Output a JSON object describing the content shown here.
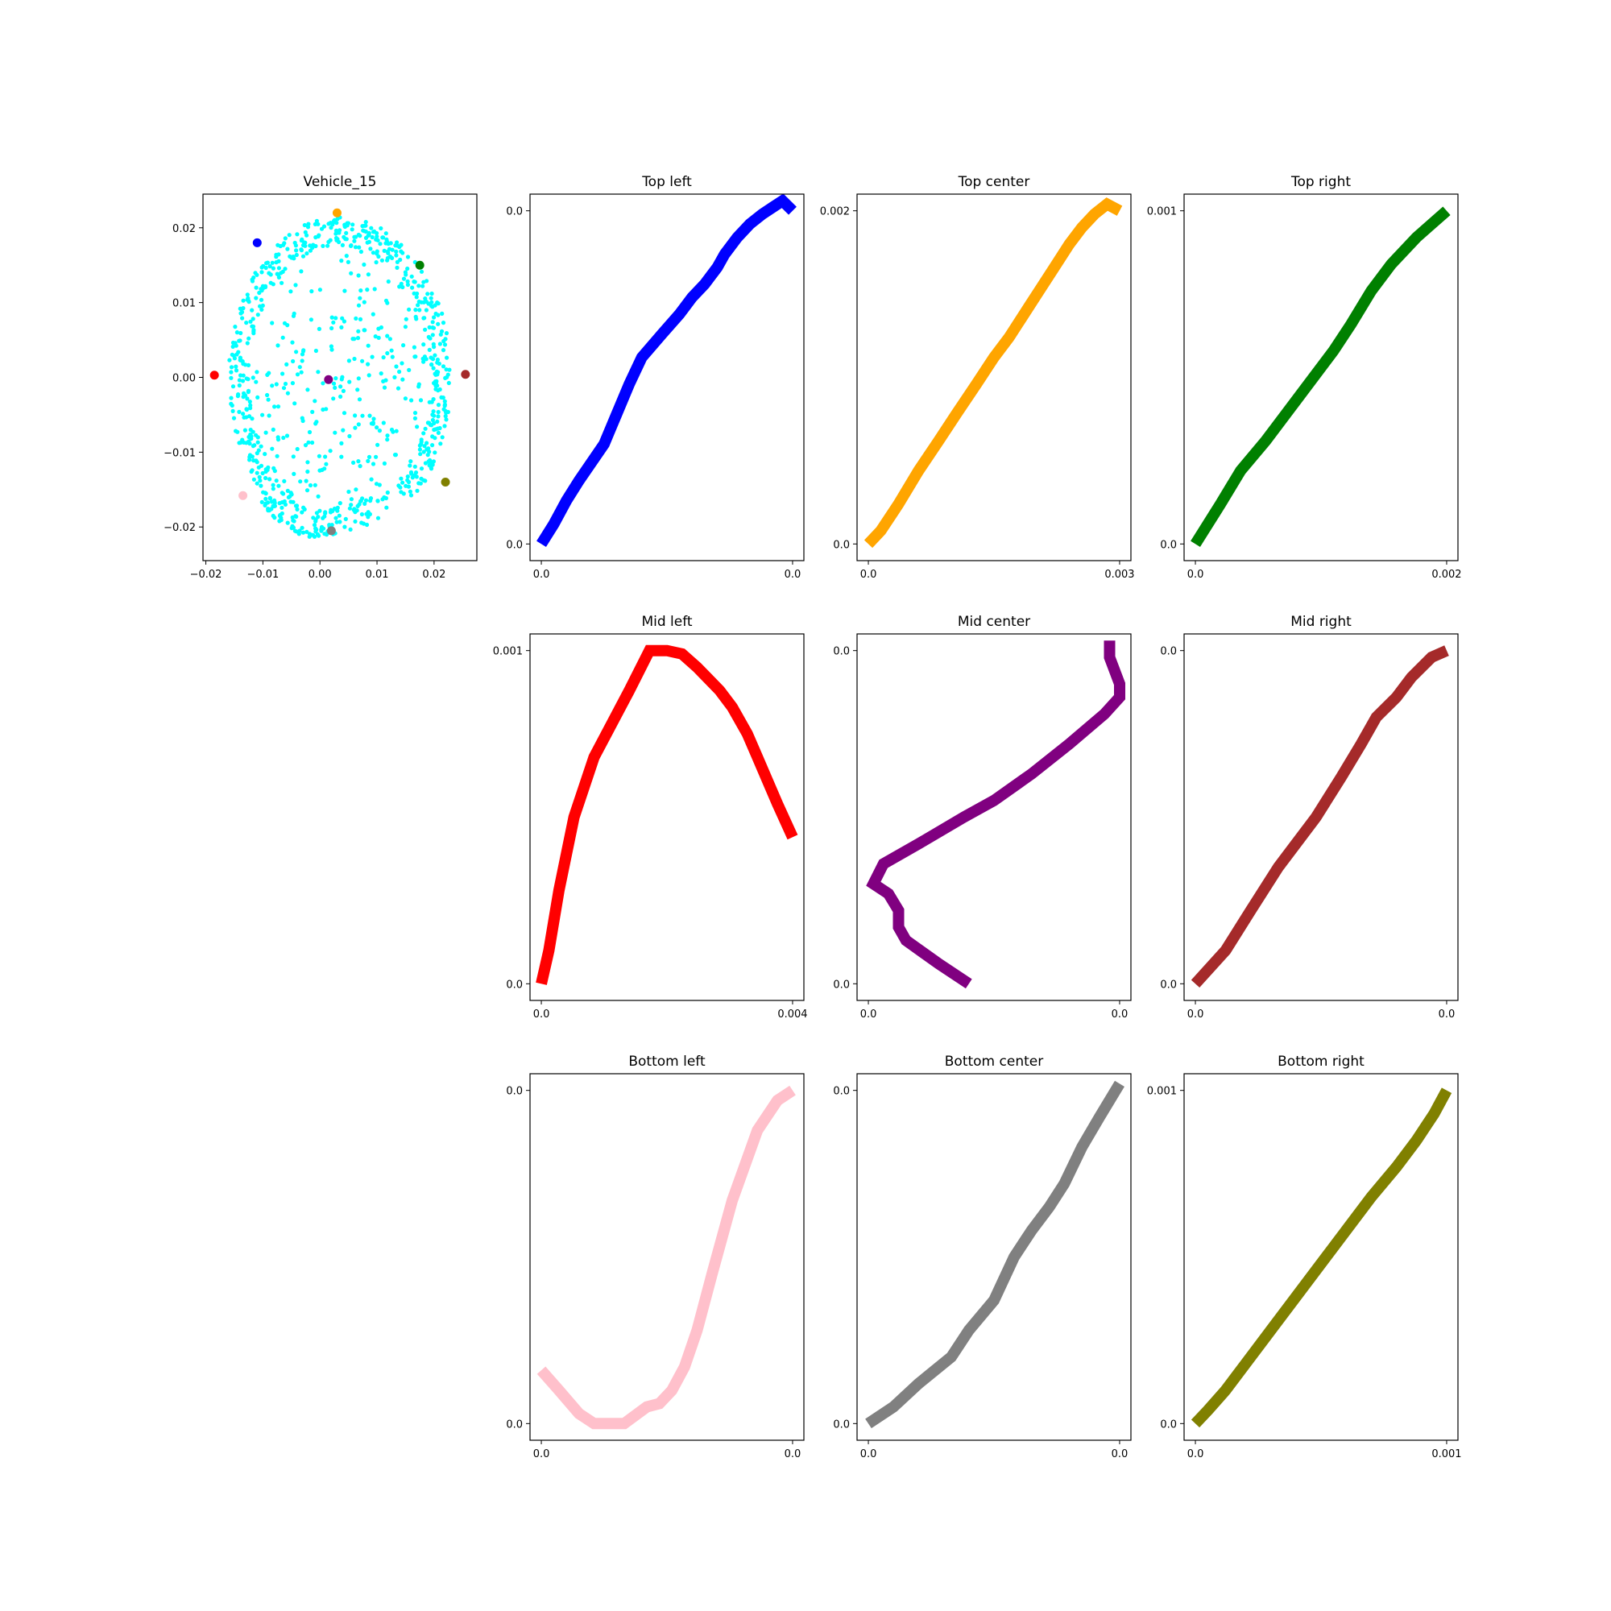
{
  "chart_data": [
    {
      "type": "scatter",
      "title": "Vehicle_15",
      "xlabel": "",
      "ylabel": "",
      "xlim": [
        -0.0205,
        0.0275
      ],
      "ylim": [
        -0.0245,
        0.0245
      ],
      "xticks": [
        -0.02,
        -0.01,
        0.0,
        0.01,
        0.02
      ],
      "xtick_labels": [
        "−0.02",
        "−0.01",
        "0.00",
        "0.01",
        "0.02"
      ],
      "yticks": [
        -0.02,
        -0.01,
        0.0,
        0.01,
        0.02
      ],
      "ytick_labels": [
        "−0.02",
        "−0.01",
        "0.00",
        "0.01",
        "0.02"
      ],
      "point_color": "#00ffff",
      "point_cloud": {
        "description_shape": "elliptical ring of points with interior scatter",
        "center": [
          0.0035,
          0.0
        ],
        "radius_x": 0.0195,
        "radius_y": 0.0215,
        "count": 900
      },
      "highlights": [
        {
          "name": "blue",
          "x": -0.011,
          "y": 0.018,
          "color": "#0000ff"
        },
        {
          "name": "orange",
          "x": 0.003,
          "y": 0.022,
          "color": "#ffa500"
        },
        {
          "name": "green",
          "x": 0.0175,
          "y": 0.015,
          "color": "#008000"
        },
        {
          "name": "red",
          "x": -0.0185,
          "y": 0.0003,
          "color": "#ff0000"
        },
        {
          "name": "purple",
          "x": 0.0015,
          "y": -0.0003,
          "color": "#800080"
        },
        {
          "name": "brown",
          "x": 0.0255,
          "y": 0.0004,
          "color": "#a52a2a"
        },
        {
          "name": "pink",
          "x": -0.0135,
          "y": -0.0158,
          "color": "#ffc0cb"
        },
        {
          "name": "gray",
          "x": 0.002,
          "y": -0.0205,
          "color": "#808080"
        },
        {
          "name": "olive",
          "x": 0.022,
          "y": -0.014,
          "color": "#808000"
        }
      ]
    },
    {
      "type": "line",
      "title": "Top left",
      "color": "#0000ff",
      "xtick_labels": [
        "0.0",
        "0.0"
      ],
      "ytick_labels": [
        "0.0",
        "0.0"
      ],
      "x": [
        0,
        0.05,
        0.1,
        0.15,
        0.25,
        0.3,
        0.35,
        0.4,
        0.48,
        0.55,
        0.6,
        0.65,
        0.7,
        0.73,
        0.78,
        0.83,
        0.88,
        0.92,
        0.96,
        1.0
      ],
      "y": [
        0,
        0.06,
        0.13,
        0.19,
        0.3,
        0.39,
        0.48,
        0.56,
        0.63,
        0.69,
        0.74,
        0.78,
        0.83,
        0.87,
        0.92,
        0.96,
        0.99,
        1.01,
        1.03,
        1.0
      ]
    },
    {
      "type": "line",
      "title": "Top center",
      "color": "#ffa500",
      "xtick_labels": [
        "0.0",
        "0.003"
      ],
      "ytick_labels": [
        "0.0",
        "0.002"
      ],
      "x": [
        0,
        0.05,
        0.12,
        0.2,
        0.28,
        0.35,
        0.43,
        0.5,
        0.56,
        0.62,
        0.68,
        0.74,
        0.8,
        0.85,
        0.9,
        0.95,
        1.0
      ],
      "y": [
        0,
        0.04,
        0.12,
        0.22,
        0.31,
        0.39,
        0.48,
        0.56,
        0.62,
        0.69,
        0.76,
        0.83,
        0.9,
        0.95,
        0.99,
        1.02,
        1.0
      ]
    },
    {
      "type": "line",
      "title": "Top right",
      "color": "#008000",
      "xtick_labels": [
        "0.0",
        "0.002"
      ],
      "ytick_labels": [
        "0.0",
        "0.001"
      ],
      "x": [
        0,
        0.1,
        0.18,
        0.28,
        0.4,
        0.55,
        0.62,
        0.7,
        0.78,
        0.88,
        1.0
      ],
      "y": [
        0,
        0.12,
        0.22,
        0.31,
        0.43,
        0.58,
        0.66,
        0.76,
        0.84,
        0.92,
        1.0
      ]
    },
    {
      "type": "line",
      "title": "Mid left",
      "color": "#ff0000",
      "xtick_labels": [
        "0.0",
        "0.004"
      ],
      "ytick_labels": [
        "0.0",
        "0.001"
      ],
      "x": [
        0,
        0.03,
        0.07,
        0.13,
        0.21,
        0.35,
        0.43,
        0.46,
        0.5,
        0.56,
        0.62,
        0.71,
        0.76,
        0.82,
        0.86,
        0.94,
        1.0
      ],
      "y": [
        0,
        0.1,
        0.28,
        0.5,
        0.68,
        0.88,
        1.0,
        1.0,
        1.0,
        0.99,
        0.95,
        0.88,
        0.83,
        0.75,
        0.68,
        0.54,
        0.44
      ]
    },
    {
      "type": "line",
      "title": "Mid center",
      "color": "#800080",
      "xtick_labels": [
        "0.0",
        "0.0"
      ],
      "ytick_labels": [
        "0.0",
        "0.0"
      ],
      "x": [
        0.4,
        0.28,
        0.15,
        0.12,
        0.12,
        0.08,
        0.02,
        0.06,
        0.2,
        0.38,
        0.5,
        0.65,
        0.8,
        0.94,
        1.0,
        1.0,
        0.96,
        0.96
      ],
      "y": [
        0.0,
        0.06,
        0.13,
        0.17,
        0.22,
        0.27,
        0.3,
        0.36,
        0.42,
        0.5,
        0.55,
        0.63,
        0.72,
        0.81,
        0.86,
        0.9,
        0.98,
        1.03
      ]
    },
    {
      "type": "line",
      "title": "Mid right",
      "color": "#a52a2a",
      "xtick_labels": [
        "0.0",
        "0.0"
      ],
      "ytick_labels": [
        "0.0",
        "0.0"
      ],
      "x": [
        0,
        0.12,
        0.22,
        0.33,
        0.4,
        0.48,
        0.58,
        0.66,
        0.72,
        0.8,
        0.86,
        0.94,
        1.0
      ],
      "y": [
        0,
        0.1,
        0.22,
        0.35,
        0.42,
        0.5,
        0.62,
        0.72,
        0.8,
        0.86,
        0.92,
        0.98,
        1.0
      ]
    },
    {
      "type": "line",
      "title": "Bottom left",
      "color": "#ffc0cb",
      "xtick_labels": [
        "0.0",
        "0.0"
      ],
      "ytick_labels": [
        "0.0",
        "0.0"
      ],
      "x": [
        0,
        0.07,
        0.15,
        0.21,
        0.33,
        0.42,
        0.47,
        0.52,
        0.57,
        0.62,
        0.68,
        0.76,
        0.86,
        0.94,
        1.0
      ],
      "y": [
        0.16,
        0.1,
        0.03,
        0.0,
        0.0,
        0.05,
        0.06,
        0.1,
        0.17,
        0.28,
        0.45,
        0.67,
        0.88,
        0.97,
        1.0
      ]
    },
    {
      "type": "line",
      "title": "Bottom center",
      "color": "#808080",
      "xtick_labels": [
        "0.0",
        "0.0"
      ],
      "ytick_labels": [
        "0.0",
        "0.0"
      ],
      "x": [
        0,
        0.1,
        0.2,
        0.33,
        0.4,
        0.5,
        0.58,
        0.65,
        0.72,
        0.78,
        0.85,
        0.92,
        1.0
      ],
      "y": [
        0,
        0.05,
        0.12,
        0.2,
        0.28,
        0.37,
        0.5,
        0.58,
        0.65,
        0.72,
        0.83,
        0.92,
        1.02
      ]
    },
    {
      "type": "line",
      "title": "Bottom right",
      "color": "#808000",
      "xtick_labels": [
        "0.0",
        "0.001"
      ],
      "ytick_labels": [
        "0.0",
        "0.001"
      ],
      "x": [
        0,
        0.05,
        0.12,
        0.2,
        0.3,
        0.4,
        0.52,
        0.6,
        0.7,
        0.8,
        0.88,
        0.95,
        1.0
      ],
      "y": [
        0,
        0.04,
        0.1,
        0.18,
        0.28,
        0.38,
        0.5,
        0.58,
        0.68,
        0.77,
        0.85,
        0.93,
        1.0
      ]
    }
  ]
}
